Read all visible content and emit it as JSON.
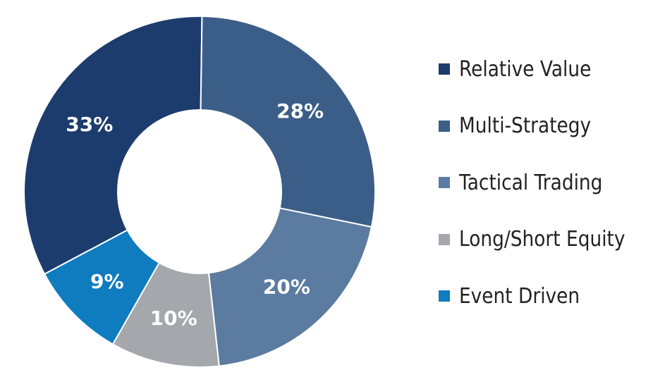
{
  "chart_data": {
    "type": "pie",
    "variant": "donut",
    "categories": [
      "Relative Value",
      "Multi-Strategy",
      "Tactical Trading",
      "Long/Short Equity",
      "Event Driven"
    ],
    "values": [
      33,
      28,
      20,
      10,
      9
    ],
    "value_labels": [
      "33%",
      "28%",
      "20%",
      "10%",
      "9%"
    ],
    "colors": [
      "#1d3c6e",
      "#3b5e88",
      "#5c7ba0",
      "#a4a7ac",
      "#0f7cc0"
    ],
    "legend_position": "right"
  }
}
